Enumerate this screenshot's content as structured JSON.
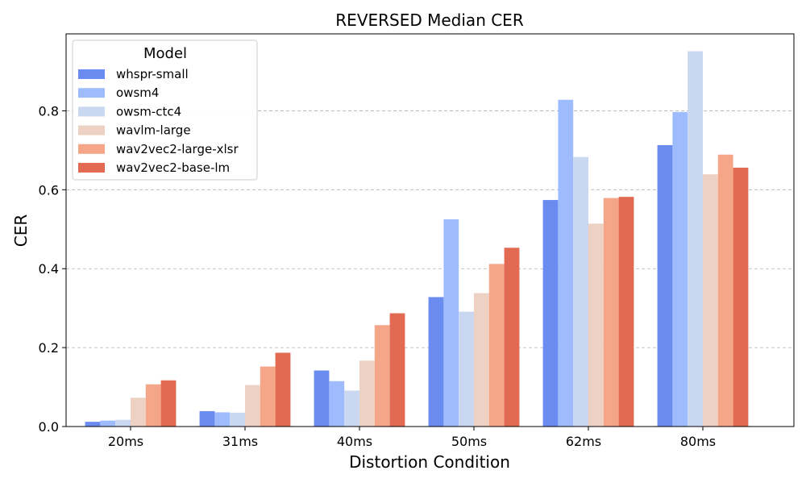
{
  "chart_data": {
    "type": "bar",
    "title": "REVERSED Median CER",
    "xlabel": "Distortion Condition",
    "ylabel": "CER",
    "categories": [
      "20ms",
      "31ms",
      "40ms",
      "50ms",
      "62ms",
      "80ms"
    ],
    "ylim": [
      0,
      0.995
    ],
    "yticks": [
      0.0,
      0.2,
      0.4,
      0.6,
      0.8
    ],
    "ytick_labels": [
      "0.0",
      "0.2",
      "0.4",
      "0.6",
      "0.8"
    ],
    "grid": "y-dashed",
    "legend": {
      "title": "Model",
      "placement": "top-left"
    },
    "series": [
      {
        "name": "whspr-small",
        "color": "#6a8bef",
        "values": [
          0.012,
          0.039,
          0.142,
          0.328,
          0.574,
          0.713
        ]
      },
      {
        "name": "owsm4",
        "color": "#9ebcfd",
        "values": [
          0.015,
          0.036,
          0.115,
          0.525,
          0.828,
          0.797
        ]
      },
      {
        "name": "owsm-ctc4",
        "color": "#c9d7f0",
        "values": [
          0.017,
          0.035,
          0.091,
          0.291,
          0.683,
          0.951
        ]
      },
      {
        "name": "wavlm-large",
        "color": "#edd1c2",
        "values": [
          0.073,
          0.105,
          0.167,
          0.338,
          0.514,
          0.639
        ]
      },
      {
        "name": "wav2vec2-large-xlsr",
        "color": "#f6a688",
        "values": [
          0.107,
          0.152,
          0.257,
          0.412,
          0.579,
          0.689
        ]
      },
      {
        "name": "wav2vec2-base-lm",
        "color": "#e26952",
        "values": [
          0.117,
          0.187,
          0.287,
          0.453,
          0.582,
          0.656
        ]
      }
    ]
  }
}
